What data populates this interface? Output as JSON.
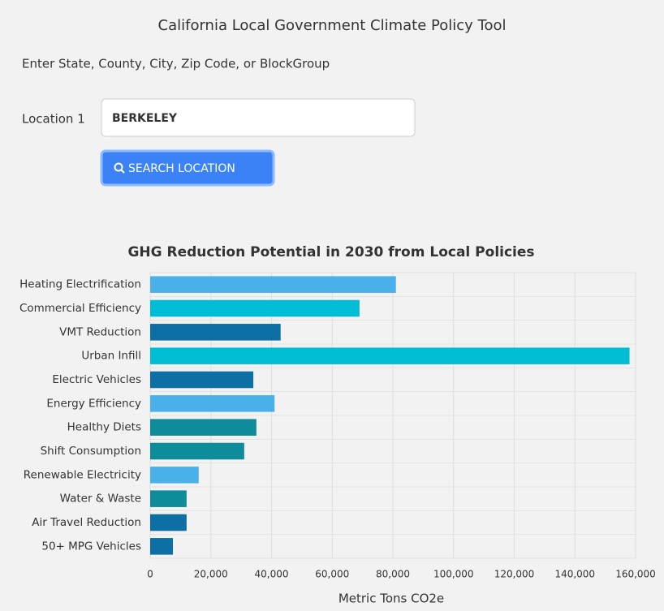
{
  "header": {
    "title": "California Local Government Climate Policy Tool",
    "prompt": "Enter State, County, City, Zip Code, or BlockGroup"
  },
  "form": {
    "location_label": "Location 1",
    "location_value": "BERKELEY",
    "button": "SEARCH LOCATION"
  },
  "chart_data": {
    "type": "hbar",
    "title": "GHG Reduction Potential in 2030 from Local Policies",
    "x_label": "Metric Tons CO2e",
    "categories": [
      "Heating Electrification",
      "Commercial Efficiency",
      "VMT Reduction",
      "Urban Infill",
      "Electric Vehicles",
      "Energy Efficiency",
      "Healthy Diets",
      "Shift Consumption",
      "Renewable Electricity",
      "Water & Waste",
      "Air Travel Reduction",
      "50+ MPG Vehicles"
    ],
    "values": [
      81000,
      69000,
      43000,
      158000,
      34000,
      41000,
      35000,
      31000,
      16000,
      12000,
      12000,
      7500
    ],
    "colors": [
      "#4ab0ea",
      "#00bcd4",
      "#0d6fa3",
      "#00bcd4",
      "#0d6fa3",
      "#4ab0ea",
      "#0e8c99",
      "#0e8c99",
      "#4ab0ea",
      "#0e8c99",
      "#0d6fa3",
      "#0d6fa3"
    ],
    "xlim": [
      0,
      160000
    ],
    "xticks": [
      0,
      {
        "value": 20000,
        "label": "20,000"
      },
      {
        "value": 40000,
        "label": "40,000"
      },
      {
        "value": 60000,
        "label": "60,000"
      },
      {
        "value": 80000,
        "label": "80,000"
      },
      {
        "value": 100000,
        "label": "100,000"
      },
      {
        "value": 120000,
        "label": "120,000"
      },
      {
        "value": 140000,
        "label": "140,000"
      },
      {
        "value": 160000,
        "label": "160,000"
      }
    ],
    "grid": true
  }
}
